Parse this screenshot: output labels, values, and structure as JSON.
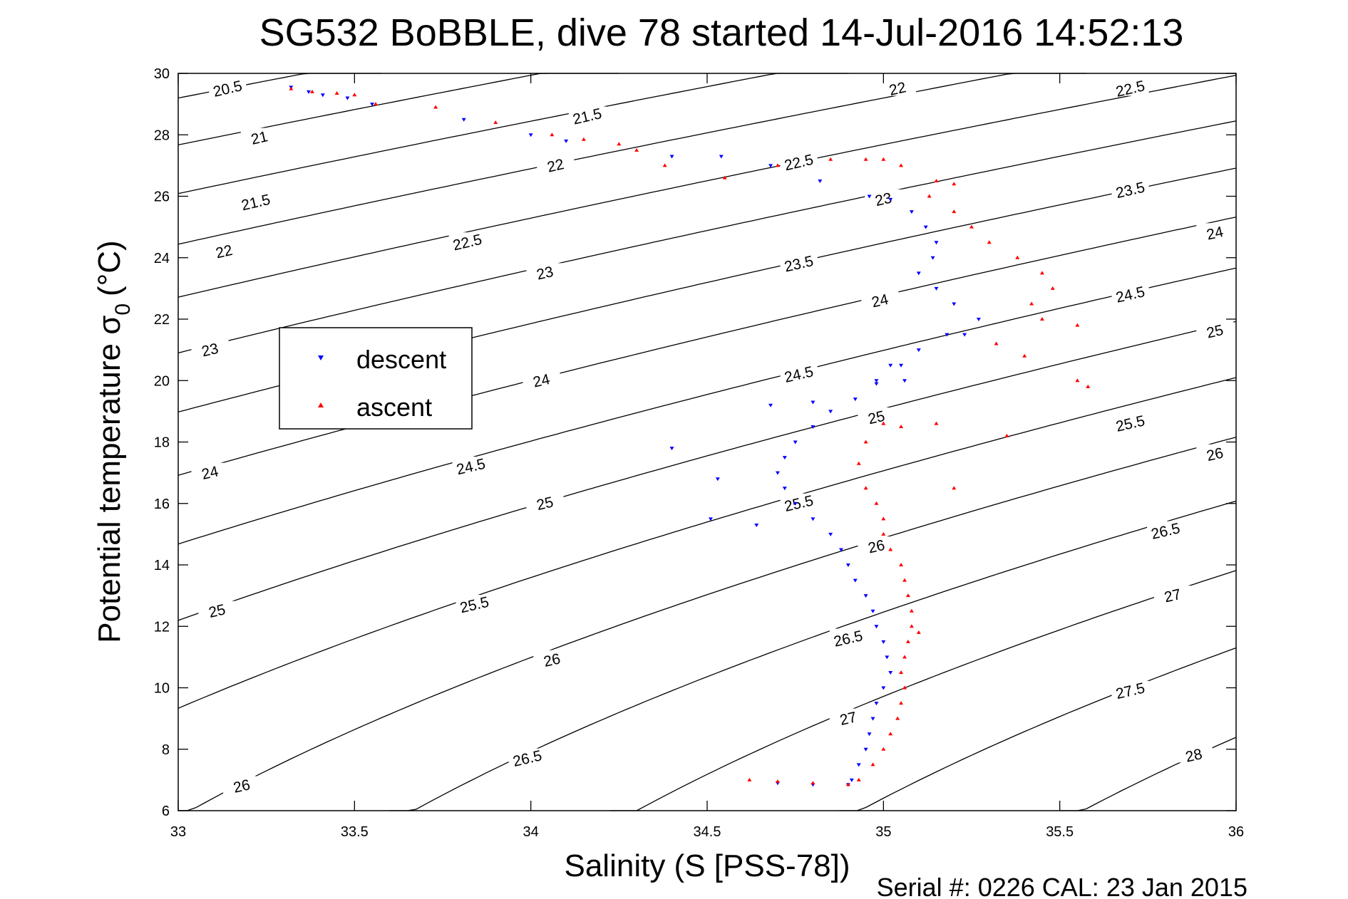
{
  "chart_data": {
    "type": "scatter",
    "title": "SG532 BoBBLE, dive 78 started 14-Jul-2016 14:52:13",
    "xlabel": "Salinity (S [PSS-78])",
    "ylabel_main": "Potential temperature σ",
    "ylabel_sub": "0",
    "ylabel_unit": "(°C)",
    "footer": "Serial #: 0226  CAL: 23 Jan 2015",
    "xlim": [
      33,
      36
    ],
    "ylim": [
      6,
      30
    ],
    "xticks": [
      "33",
      "33.5",
      "34",
      "34.5",
      "35",
      "35.5",
      "36"
    ],
    "yticks": [
      "6",
      "8",
      "10",
      "12",
      "14",
      "16",
      "18",
      "20",
      "22",
      "24",
      "26",
      "28",
      "30"
    ],
    "grid": false,
    "legend_position": "left",
    "contours": {
      "levels": [
        20.5,
        21,
        21.5,
        22,
        22.5,
        23,
        23.5,
        24,
        24.5,
        25,
        25.5,
        26,
        26.5,
        27,
        27.5,
        28
      ],
      "labels": [
        {
          "text": "20.5",
          "s": 33.14,
          "t": 29.5
        },
        {
          "text": "21",
          "s": 33.23,
          "t": 27.9
        },
        {
          "text": "21.5",
          "s": 33.22,
          "t": 25.8
        },
        {
          "text": "22",
          "s": 33.13,
          "t": 24.2
        },
        {
          "text": "23",
          "s": 33.09,
          "t": 21.0
        },
        {
          "text": "24",
          "s": 33.09,
          "t": 17.0
        },
        {
          "text": "25",
          "s": 33.11,
          "t": 12.5
        },
        {
          "text": "26",
          "s": 33.18,
          "t": 6.8
        },
        {
          "text": "21.5",
          "s": 34.16,
          "t": 28.6
        },
        {
          "text": "22",
          "s": 34.07,
          "t": 27.0
        },
        {
          "text": "22.5",
          "s": 33.82,
          "t": 24.5
        },
        {
          "text": "23",
          "s": 34.04,
          "t": 23.5
        },
        {
          "text": "24",
          "s": 34.03,
          "t": 20.0
        },
        {
          "text": "24.5",
          "s": 33.83,
          "t": 17.2
        },
        {
          "text": "25",
          "s": 34.04,
          "t": 16.0
        },
        {
          "text": "25.5",
          "s": 33.84,
          "t": 12.7
        },
        {
          "text": "26",
          "s": 34.06,
          "t": 10.9
        },
        {
          "text": "26.5",
          "s": 33.99,
          "t": 7.7
        },
        {
          "text": "22",
          "s": 35.04,
          "t": 29.5
        },
        {
          "text": "22.5",
          "s": 34.76,
          "t": 27.1
        },
        {
          "text": "23.5",
          "s": 34.76,
          "t": 23.8
        },
        {
          "text": "24.5",
          "s": 34.76,
          "t": 20.2
        },
        {
          "text": "25.5",
          "s": 34.76,
          "t": 16.0
        },
        {
          "text": "26.5",
          "s": 34.9,
          "t": 11.6
        },
        {
          "text": "27",
          "s": 34.9,
          "t": 9.0
        },
        {
          "text": "23",
          "s": 35.0,
          "t": 25.9
        },
        {
          "text": "24",
          "s": 34.99,
          "t": 22.6
        },
        {
          "text": "25",
          "s": 34.98,
          "t": 18.8
        },
        {
          "text": "26",
          "s": 34.98,
          "t": 14.6
        },
        {
          "text": "22.5",
          "s": 35.7,
          "t": 29.5
        },
        {
          "text": "23.5",
          "s": 35.7,
          "t": 26.2
        },
        {
          "text": "24",
          "s": 35.94,
          "t": 24.8
        },
        {
          "text": "24.5",
          "s": 35.7,
          "t": 22.8
        },
        {
          "text": "25",
          "s": 35.94,
          "t": 21.6
        },
        {
          "text": "25.5",
          "s": 35.7,
          "t": 18.6
        },
        {
          "text": "26",
          "s": 35.94,
          "t": 17.6
        },
        {
          "text": "26.5",
          "s": 35.8,
          "t": 15.1
        },
        {
          "text": "27",
          "s": 35.82,
          "t": 13.0
        },
        {
          "text": "27.5",
          "s": 35.7,
          "t": 9.9
        },
        {
          "text": "28",
          "s": 35.88,
          "t": 7.8
        }
      ]
    },
    "legend": [
      {
        "label": "descent",
        "color": "#0000ff",
        "marker": "down-triangle"
      },
      {
        "label": "ascent",
        "color": "#ff0000",
        "marker": "up-triangle"
      }
    ],
    "series": [
      {
        "name": "descent",
        "color": "#0000ff",
        "points": [
          [
            33.32,
            29.55
          ],
          [
            33.37,
            29.4
          ],
          [
            33.41,
            29.3
          ],
          [
            33.48,
            29.2
          ],
          [
            33.55,
            29.0
          ],
          [
            33.81,
            28.5
          ],
          [
            34.0,
            28.0
          ],
          [
            34.1,
            27.8
          ],
          [
            34.4,
            27.3
          ],
          [
            34.54,
            27.3
          ],
          [
            34.68,
            27.0
          ],
          [
            34.82,
            26.5
          ],
          [
            34.96,
            26.0
          ],
          [
            35.02,
            25.9
          ],
          [
            35.08,
            25.5
          ],
          [
            35.12,
            25.0
          ],
          [
            35.15,
            24.5
          ],
          [
            35.14,
            24.0
          ],
          [
            35.1,
            23.5
          ],
          [
            35.15,
            23.0
          ],
          [
            35.2,
            22.5
          ],
          [
            35.27,
            22.0
          ],
          [
            35.23,
            21.5
          ],
          [
            35.1,
            21.0
          ],
          [
            35.05,
            20.5
          ],
          [
            34.98,
            19.9
          ],
          [
            34.92,
            19.4
          ],
          [
            34.85,
            19.0
          ],
          [
            34.8,
            18.5
          ],
          [
            34.75,
            18.0
          ],
          [
            34.72,
            17.5
          ],
          [
            34.7,
            17.0
          ],
          [
            34.72,
            16.5
          ],
          [
            34.75,
            16.0
          ],
          [
            34.8,
            15.5
          ],
          [
            34.85,
            15.0
          ],
          [
            34.88,
            14.5
          ],
          [
            34.9,
            14.0
          ],
          [
            34.92,
            13.5
          ],
          [
            34.95,
            13.0
          ],
          [
            34.97,
            12.5
          ],
          [
            34.98,
            12.0
          ],
          [
            35.0,
            11.5
          ],
          [
            35.01,
            11.0
          ],
          [
            35.02,
            10.5
          ],
          [
            35.0,
            10.0
          ],
          [
            34.98,
            9.5
          ],
          [
            34.97,
            9.0
          ],
          [
            34.96,
            8.5
          ],
          [
            34.95,
            8.0
          ],
          [
            34.93,
            7.5
          ],
          [
            34.91,
            7.0
          ],
          [
            34.9,
            6.85
          ],
          [
            34.8,
            6.85
          ],
          [
            34.7,
            6.9
          ],
          [
            34.4,
            17.8
          ],
          [
            34.53,
            16.8
          ],
          [
            34.51,
            15.5
          ],
          [
            34.64,
            15.3
          ],
          [
            34.68,
            19.2
          ],
          [
            34.8,
            19.3
          ],
          [
            34.98,
            20.0
          ],
          [
            35.02,
            20.5
          ],
          [
            35.06,
            20.0
          ],
          [
            35.18,
            21.5
          ]
        ]
      },
      {
        "name": "ascent",
        "color": "#ff0000",
        "points": [
          [
            33.32,
            29.5
          ],
          [
            33.38,
            29.4
          ],
          [
            33.45,
            29.35
          ],
          [
            33.5,
            29.3
          ],
          [
            33.56,
            29.0
          ],
          [
            33.73,
            28.9
          ],
          [
            33.9,
            28.4
          ],
          [
            34.06,
            28.0
          ],
          [
            34.15,
            27.85
          ],
          [
            34.25,
            27.7
          ],
          [
            34.3,
            27.5
          ],
          [
            34.38,
            27.0
          ],
          [
            34.55,
            26.6
          ],
          [
            34.7,
            27.0
          ],
          [
            34.85,
            27.2
          ],
          [
            34.95,
            27.2
          ],
          [
            35.0,
            27.2
          ],
          [
            35.05,
            27.0
          ],
          [
            35.15,
            26.5
          ],
          [
            35.2,
            26.4
          ],
          [
            35.13,
            26.0
          ],
          [
            35.2,
            25.5
          ],
          [
            35.25,
            25.0
          ],
          [
            35.3,
            24.5
          ],
          [
            35.38,
            24.0
          ],
          [
            35.45,
            23.5
          ],
          [
            35.48,
            23.0
          ],
          [
            35.42,
            22.5
          ],
          [
            35.45,
            22.0
          ],
          [
            35.55,
            21.8
          ],
          [
            35.32,
            21.2
          ],
          [
            35.4,
            20.8
          ],
          [
            35.55,
            20.0
          ],
          [
            35.58,
            19.8
          ],
          [
            35.15,
            18.6
          ],
          [
            35.05,
            18.5
          ],
          [
            35.0,
            18.6
          ],
          [
            34.95,
            18.0
          ],
          [
            34.93,
            17.3
          ],
          [
            34.95,
            16.5
          ],
          [
            34.98,
            16.0
          ],
          [
            35.0,
            15.5
          ],
          [
            35.0,
            15.0
          ],
          [
            35.02,
            14.5
          ],
          [
            35.05,
            14.0
          ],
          [
            35.06,
            13.5
          ],
          [
            35.07,
            13.0
          ],
          [
            35.08,
            12.5
          ],
          [
            35.08,
            12.0
          ],
          [
            35.07,
            11.5
          ],
          [
            35.06,
            11.0
          ],
          [
            35.05,
            10.5
          ],
          [
            35.06,
            10.0
          ],
          [
            35.05,
            9.5
          ],
          [
            35.04,
            9.0
          ],
          [
            35.02,
            8.5
          ],
          [
            35.0,
            8.0
          ],
          [
            34.97,
            7.5
          ],
          [
            34.93,
            7.0
          ],
          [
            34.9,
            6.85
          ],
          [
            34.8,
            6.9
          ],
          [
            34.7,
            6.95
          ],
          [
            34.62,
            7.0
          ],
          [
            35.1,
            11.8
          ],
          [
            35.35,
            18.2
          ],
          [
            35.2,
            16.5
          ]
        ]
      }
    ]
  }
}
